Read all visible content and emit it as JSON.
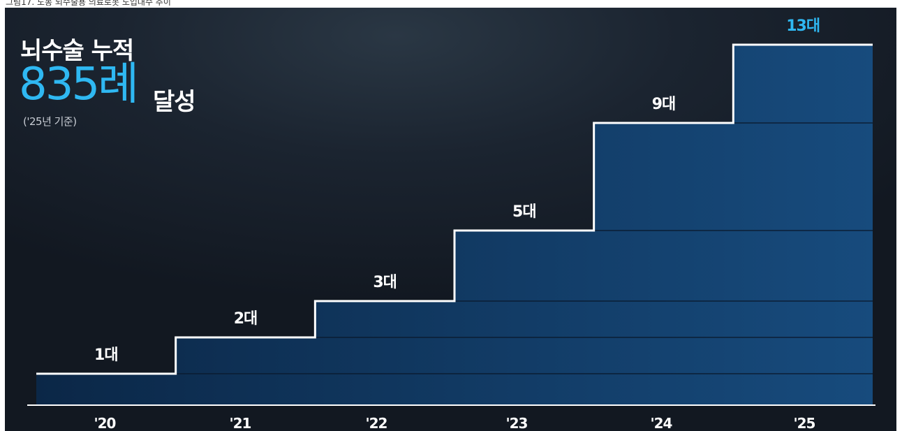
{
  "caption": "그림17. 도봉 뇌수술용 의료로봇 도입대수 추이",
  "headline": {
    "title": "뇌수술 누적",
    "number": "835례",
    "achieved": "달성",
    "note": "('25년 기준)"
  },
  "chart_data": {
    "type": "area",
    "style": "step",
    "categories": [
      "'20",
      "'21",
      "'22",
      "'23",
      "'24",
      "'25"
    ],
    "values": [
      1,
      2,
      3,
      5,
      9,
      13
    ],
    "value_labels": [
      "1대",
      "2대",
      "3대",
      "5대",
      "9대",
      "13대"
    ],
    "highlight_last": true,
    "ylim": [
      0,
      13
    ],
    "grid": false,
    "colors": {
      "fill_dark": "#0b2747",
      "fill_light": "#174b7d",
      "step_line": "#ffffff",
      "highlight_label": "#2fb8f2",
      "label": "#ffffff"
    }
  }
}
